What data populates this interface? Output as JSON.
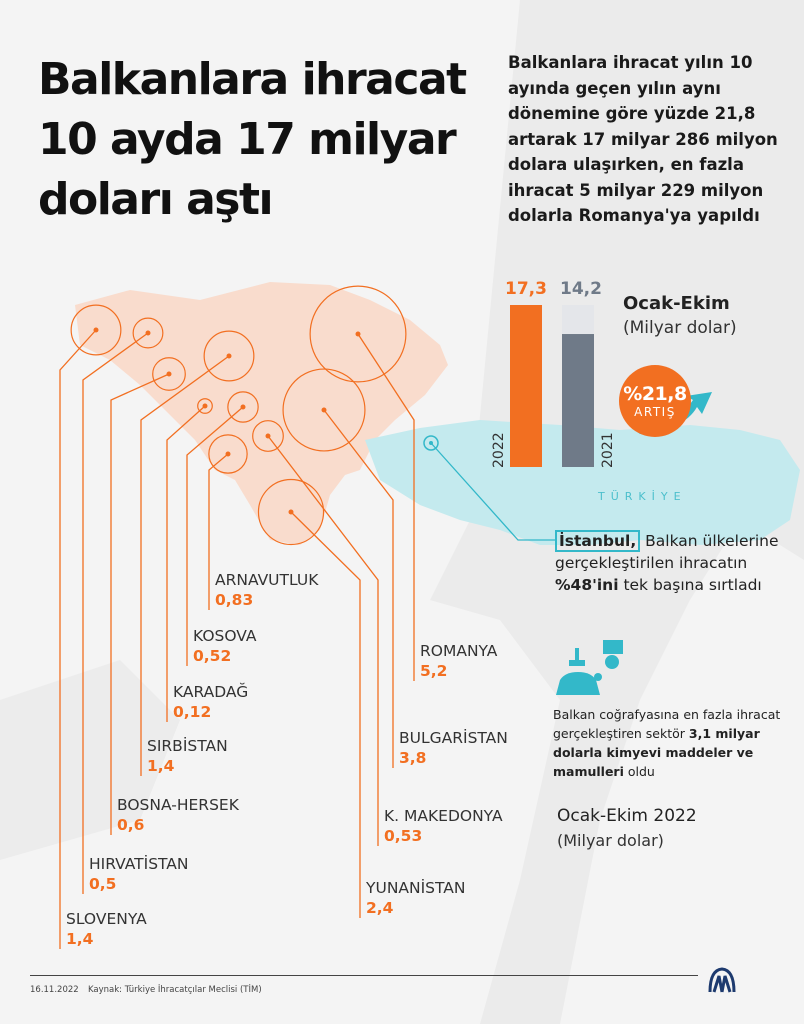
{
  "title": "Balkanlara ihracat 10 ayda 17 milyar doları aştı",
  "intro": "Balkanlara ihracat yılın 10 ayında geçen yılın aynı dönemine göre yüzde 21,8 artarak 17 milyar 286 milyon dolara ulaşırken, en fazla ihracat 5 milyar 229 milyon dolarla Romanya'ya yapıldı",
  "colors": {
    "accent": "#f26f21",
    "bar2021": "#6f7a88",
    "bar2021_ghost": "#e4e6ea",
    "balkans": "#f9dccd",
    "turkey": "#c4eaee",
    "teal": "#33b8c9"
  },
  "chart_data": [
    {
      "type": "bar",
      "categories": [
        "2022",
        "2021"
      ],
      "values": [
        17.3,
        14.2
      ],
      "value_labels": [
        "17,3",
        "14,2"
      ],
      "title": "Ocak-Ekim",
      "ylabel": "(Milyar dolar)",
      "ylim": [
        0,
        17.3
      ]
    },
    {
      "type": "bubble-map",
      "title": "Ocak-Ekim 2022",
      "unit": "(Milyar dolar)",
      "categories": [
        "ARNAVUTLUK",
        "KOSOVA",
        "KARADAĞ",
        "SIRBİSTAN",
        "BOSNA-HERSEK",
        "HIRVATİSTAN",
        "SLOVENYA",
        "ROMANYA",
        "BULGARİSTAN",
        "K. MAKEDONYA",
        "YUNANİSTAN"
      ],
      "values": [
        0.83,
        0.52,
        0.12,
        1.4,
        0.6,
        0.5,
        1.4,
        5.2,
        3.8,
        0.53,
        2.4
      ],
      "value_labels": [
        "0,83",
        "0,52",
        "0,12",
        "1,4",
        "0,6",
        "0,5",
        "1,4",
        "5,2",
        "3,8",
        "0,53",
        "2,4"
      ]
    }
  ],
  "increase": {
    "pct": "%21,8",
    "label": "ARTIŞ"
  },
  "map_label": "TÜRKİYE",
  "istanbul": {
    "city": "İstanbul,",
    "text1": " Balkan ülkelerine gerçekleştirilen ihracatın ",
    "bold": "%48'ini",
    "text2": " tek başına sırtladı"
  },
  "sector": {
    "text1": "Balkan coğrafyasına en fazla ihracat gerçekleştiren sektör ",
    "bold": "3,1 milyar dolarla kimyevi maddeler ve mamulleri",
    "text2": " oldu"
  },
  "footer": {
    "date": "16.11.2022",
    "source": "Kaynak: Türkiye İhracatçılar Meclisi (TİM)",
    "logo": "AA"
  }
}
